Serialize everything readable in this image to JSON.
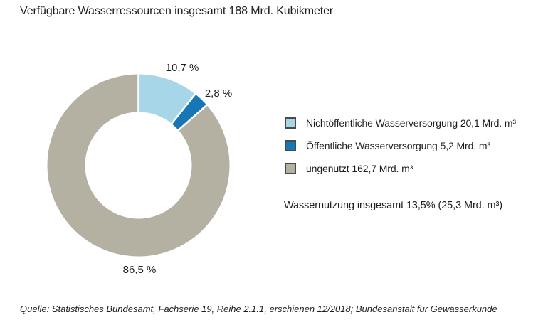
{
  "title": "Verfügbare Wasserressourcen insgesamt 188 Mrd. Kubikmeter",
  "source": "Quelle: Statistisches Bundesamt, Fachserie 19, Reihe 2.1.1, erschienen 12/2018; Bundesanstalt für Gewässerkunde",
  "chart_data": {
    "type": "pie",
    "subtype": "donut",
    "title": "Verfügbare Wasserressourcen insgesamt 188 Mrd. Kubikmeter",
    "total_value": 188,
    "unit": "Mrd. m³",
    "start_angle_deg": 0,
    "direction": "clockwise",
    "legend_position": "right",
    "separator_color": "#ffffff",
    "slices": [
      {
        "label": "Nichtöffentliche Wasserversorgung",
        "value": 20.1,
        "percent": 10.7,
        "percent_label": "10,7 %",
        "legend_label": "Nichtöffentliche Wasserversorgung 20,1 Mrd. m³",
        "color": "#a6d6e8"
      },
      {
        "label": "Öffentliche Wasserversorgung",
        "value": 5.2,
        "percent": 2.8,
        "percent_label": "2,8 %",
        "legend_label": "Öffentliche Wasserversorgung 5,2 Mrd. m³",
        "color": "#1777b4"
      },
      {
        "label": "ungenutzt",
        "value": 162.7,
        "percent": 86.5,
        "percent_label": "86,5 %",
        "legend_label": "ungenutzt 162,7 Mrd. m³",
        "color": "#b4b1a3"
      }
    ],
    "summary": "Wassernutzung insgesamt 13,5% (25,3 Mrd. m³)"
  }
}
